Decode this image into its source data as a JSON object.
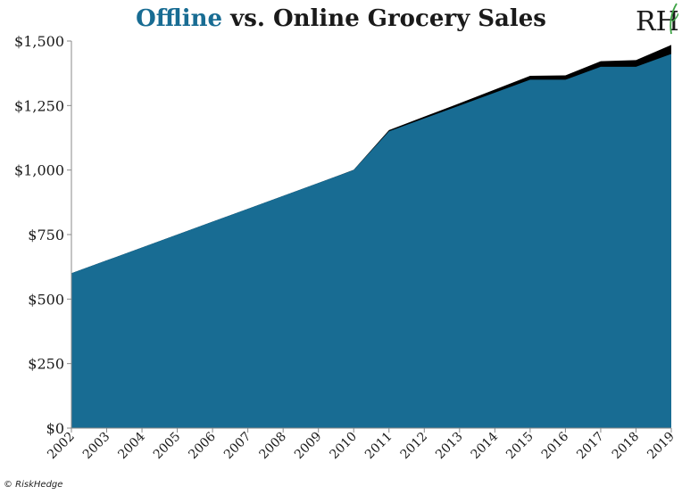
{
  "title": {
    "highlight": "Offline",
    "rest": " vs. Online Grocery Sales"
  },
  "logo": {
    "text": "RH"
  },
  "credit": "© RiskHedge",
  "colors": {
    "offline": "#186c93",
    "online": "#000000",
    "axis": "#8a8a8a",
    "text": "#1a1a1a"
  },
  "chart_data": {
    "type": "area",
    "stacked": true,
    "categories": [
      "2002",
      "2003",
      "2004",
      "2005",
      "2006",
      "2007",
      "2008",
      "2009",
      "2010",
      "2011",
      "2012",
      "2013",
      "2014",
      "2015",
      "2016",
      "2017",
      "2018",
      "2019"
    ],
    "series": [
      {
        "name": "Offline",
        "values": [
          600,
          650,
          700,
          750,
          800,
          850,
          900,
          950,
          1000,
          1150,
          1200,
          1250,
          1300,
          1350,
          1350,
          1400,
          1400,
          1450
        ]
      },
      {
        "name": "Online",
        "values": [
          0,
          0,
          0,
          0,
          0,
          0,
          0,
          0,
          1,
          5,
          7,
          9,
          12,
          15,
          17,
          22,
          26,
          35
        ]
      }
    ],
    "ylim": [
      0,
      1500
    ],
    "yticks": [
      0,
      250,
      500,
      750,
      1000,
      1250,
      1500
    ],
    "ytick_labels": [
      "$0",
      "$250",
      "$500",
      "$750",
      "$1,000",
      "$1,250",
      "$1,500"
    ],
    "grid": false,
    "legend": "none"
  }
}
